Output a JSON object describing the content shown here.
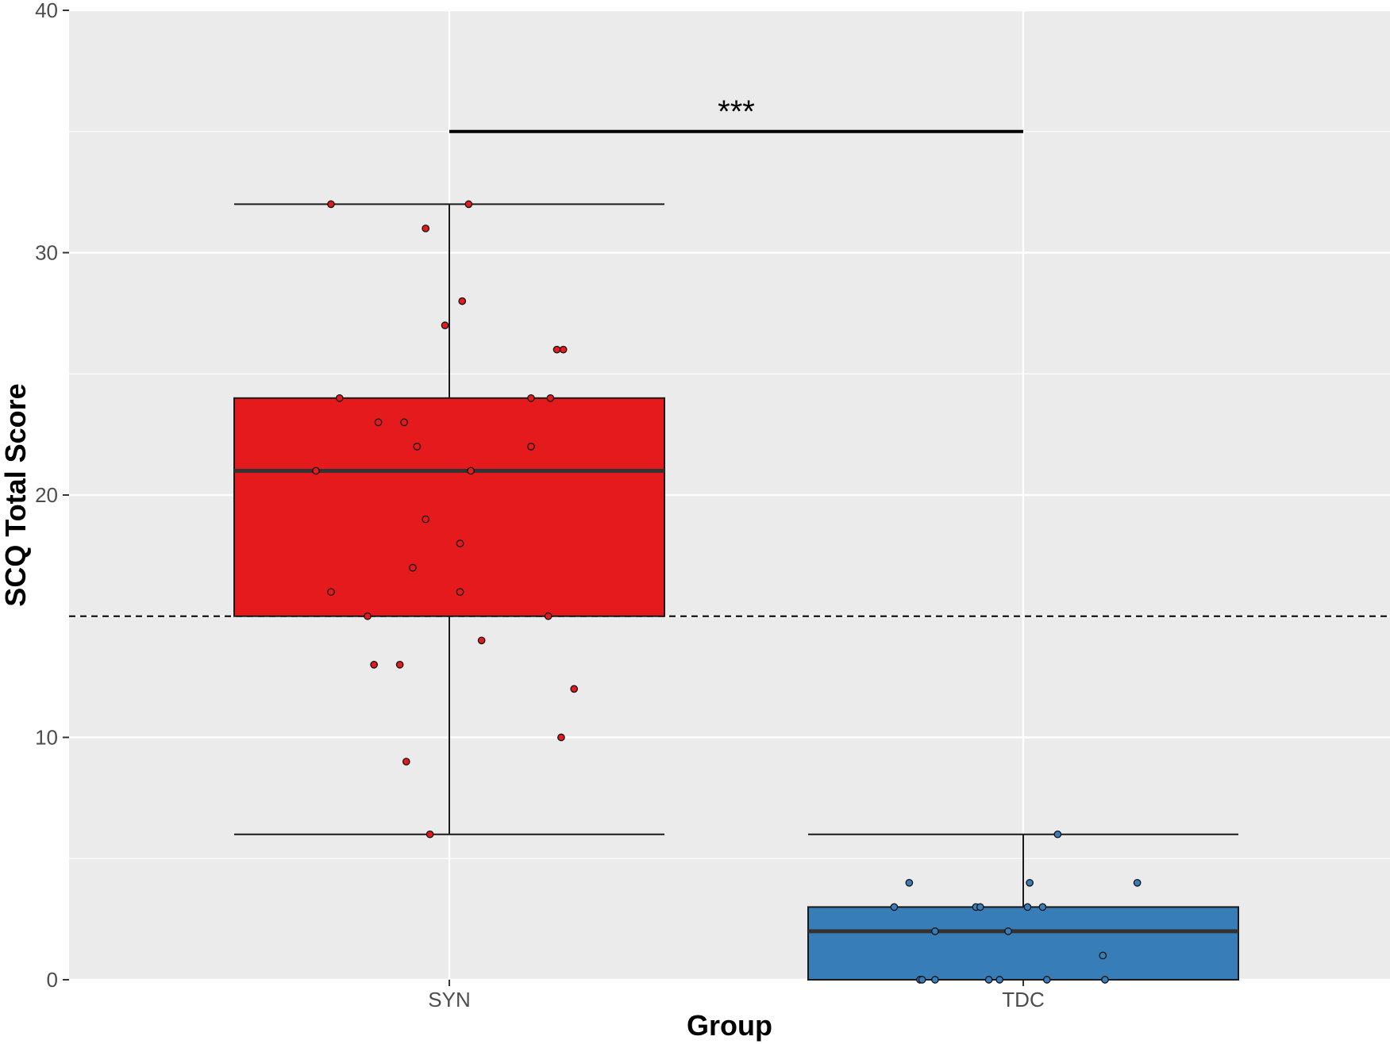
{
  "chart_data": {
    "type": "boxplot",
    "xlabel": "Group",
    "ylabel": "SCQ Total Score",
    "categories": [
      "SYN",
      "TDC"
    ],
    "ylim": [
      0,
      40
    ],
    "yticks": [
      0,
      10,
      20,
      30,
      40
    ],
    "ytick_labels": [
      "0",
      "10",
      "20",
      "30",
      "40"
    ],
    "grid": true,
    "threshold_line": {
      "y": 15,
      "style": "dashed"
    },
    "significance": {
      "label": "***",
      "y": 35,
      "from": "SYN",
      "to": "TDC"
    },
    "colors": {
      "panel_bg": "#ebebeb",
      "grid": "#ffffff",
      "SYN": "#e41a1c",
      "TDC": "#377eb8",
      "outline": "#1a1a1a",
      "median": "#333333"
    },
    "boxes": [
      {
        "group": "SYN",
        "whisker_low": 6,
        "q1": 15,
        "median": 21,
        "q3": 24,
        "whisker_high": 32,
        "points": [
          {
            "x": -0.55,
            "y": 32
          },
          {
            "x": 0.09,
            "y": 32
          },
          {
            "x": -0.11,
            "y": 31
          },
          {
            "x": 0.06,
            "y": 28
          },
          {
            "x": -0.02,
            "y": 27
          },
          {
            "x": 0.5,
            "y": 26
          },
          {
            "x": 0.53,
            "y": 26
          },
          {
            "x": -0.51,
            "y": 24
          },
          {
            "x": 0.38,
            "y": 24
          },
          {
            "x": 0.47,
            "y": 24
          },
          {
            "x": -0.33,
            "y": 23
          },
          {
            "x": -0.21,
            "y": 23
          },
          {
            "x": -0.15,
            "y": 22
          },
          {
            "x": 0.38,
            "y": 22
          },
          {
            "x": -0.62,
            "y": 21
          },
          {
            "x": 0.1,
            "y": 21
          },
          {
            "x": -0.11,
            "y": 19
          },
          {
            "x": 0.05,
            "y": 18
          },
          {
            "x": -0.17,
            "y": 17
          },
          {
            "x": -0.55,
            "y": 16
          },
          {
            "x": 0.05,
            "y": 16
          },
          {
            "x": -0.38,
            "y": 15
          },
          {
            "x": 0.46,
            "y": 15
          },
          {
            "x": 0.15,
            "y": 14
          },
          {
            "x": -0.35,
            "y": 13
          },
          {
            "x": -0.23,
            "y": 13
          },
          {
            "x": 0.58,
            "y": 12
          },
          {
            "x": 0.52,
            "y": 10
          },
          {
            "x": -0.2,
            "y": 9
          },
          {
            "x": -0.09,
            "y": 6
          }
        ]
      },
      {
        "group": "TDC",
        "whisker_low": 0,
        "q1": 0,
        "median": 2,
        "q3": 3,
        "whisker_high": 6,
        "points": [
          {
            "x": 0.16,
            "y": 6
          },
          {
            "x": -0.53,
            "y": 4
          },
          {
            "x": 0.03,
            "y": 4
          },
          {
            "x": 0.53,
            "y": 4
          },
          {
            "x": -0.6,
            "y": 3
          },
          {
            "x": -0.22,
            "y": 3
          },
          {
            "x": -0.2,
            "y": 3
          },
          {
            "x": 0.02,
            "y": 3
          },
          {
            "x": 0.09,
            "y": 3
          },
          {
            "x": -0.41,
            "y": 2
          },
          {
            "x": -0.07,
            "y": 2
          },
          {
            "x": 0.37,
            "y": 1
          },
          {
            "x": -0.48,
            "y": 0
          },
          {
            "x": -0.47,
            "y": 0
          },
          {
            "x": -0.41,
            "y": 0
          },
          {
            "x": -0.16,
            "y": 0
          },
          {
            "x": -0.11,
            "y": 0
          },
          {
            "x": 0.11,
            "y": 0
          },
          {
            "x": 0.38,
            "y": 0
          }
        ]
      }
    ]
  }
}
